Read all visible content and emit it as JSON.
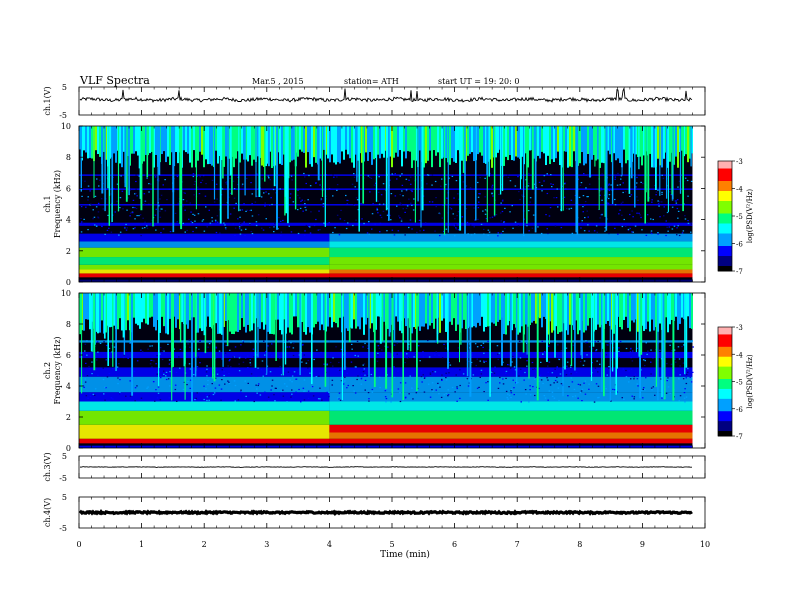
{
  "header": {
    "title": "VLF  Spectra",
    "date": "Mar.5  , 2015",
    "station": "station= ATH",
    "start": "start  UT  =   19: 20: 0"
  },
  "chart_data": [
    {
      "id": "ch1_waveform",
      "type": "line",
      "ylabel": "ch.1(V)",
      "ylim": [
        -5,
        5
      ],
      "y_ticks": [
        "5",
        "-5"
      ],
      "baseline": 0.5,
      "noise_amplitude": 0.6,
      "spikes": [
        0.7,
        1.6,
        4.25,
        5.3,
        5.4,
        8.6,
        8.7,
        9.7
      ]
    },
    {
      "id": "ch1_spectrogram",
      "type": "heatmap",
      "ylabel": "Frequency  (kHz)",
      "channel_label": "ch.1",
      "ylim": [
        0,
        10
      ],
      "y_ticks": [
        "0",
        "2",
        "4",
        "6",
        "8",
        "10"
      ],
      "step_change_time": 4.0,
      "colorbar": {
        "label": "log(PSD(V²/Hz)",
        "ticks": [
          "-3",
          "-4",
          "-5",
          "-6",
          "-7"
        ]
      }
    },
    {
      "id": "ch2_spectrogram",
      "type": "heatmap",
      "ylabel": "Frequency  (kHz)",
      "channel_label": "ch.2",
      "ylim": [
        0,
        10
      ],
      "y_ticks": [
        "0",
        "2",
        "4",
        "6",
        "8",
        "10"
      ],
      "step_change_time": 4.0,
      "colorbar": {
        "label": "log(PSD(V²/Hz)",
        "ticks": [
          "-3",
          "-4",
          "-5",
          "-6",
          "-7"
        ]
      }
    },
    {
      "id": "ch3_waveform",
      "type": "line",
      "ylabel": "ch.3(V)",
      "ylim": [
        -5,
        5
      ],
      "y_ticks": [
        "5",
        "-5"
      ],
      "baseline": 0.0,
      "noise_amplitude": 0.12
    },
    {
      "id": "ch4_waveform",
      "type": "line",
      "ylabel": "ch.4(V)",
      "ylim": [
        -5,
        5
      ],
      "y_ticks": [
        "5",
        "-5"
      ],
      "baseline": 0.0,
      "noise_amplitude": 0.25,
      "thick": true
    }
  ],
  "x_axis": {
    "label": "Time  (min)",
    "xlim": [
      0,
      10
    ],
    "data_end": 9.8,
    "ticks": [
      "0",
      "1",
      "2",
      "3",
      "4",
      "5",
      "6",
      "7",
      "8",
      "9",
      "10"
    ]
  },
  "colormap": [
    "#000000",
    "#000080",
    "#0000ff",
    "#00a0ff",
    "#00ffff",
    "#00ff80",
    "#80ff00",
    "#ffff00",
    "#ff8000",
    "#ff0000",
    "#ffb0b0",
    "#ffffff"
  ]
}
